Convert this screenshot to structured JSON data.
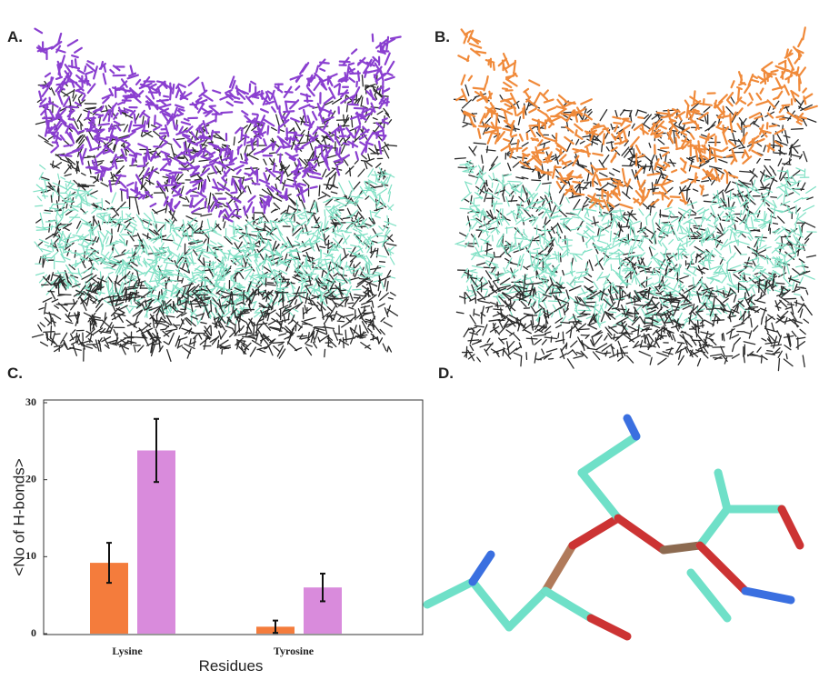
{
  "panels": {
    "a": "A.",
    "b": "B.",
    "c": "C.",
    "d": "D."
  },
  "chart_data": {
    "type": "bar",
    "y_label": "<No of H-bonds>",
    "x_label": "Residues",
    "categories": [
      "Lysine",
      "Tyrosine"
    ],
    "series": [
      {
        "color": "#f47c3c",
        "values": [
          9.2,
          0.9
        ],
        "errors": [
          2.6,
          0.8
        ]
      },
      {
        "color": "#d98bdc",
        "values": [
          23.8,
          6.0
        ],
        "errors": [
          4.1,
          1.8
        ]
      }
    ],
    "ylim": [
      0,
      30
    ],
    "yticks": [
      0,
      10,
      20,
      30
    ]
  }
}
